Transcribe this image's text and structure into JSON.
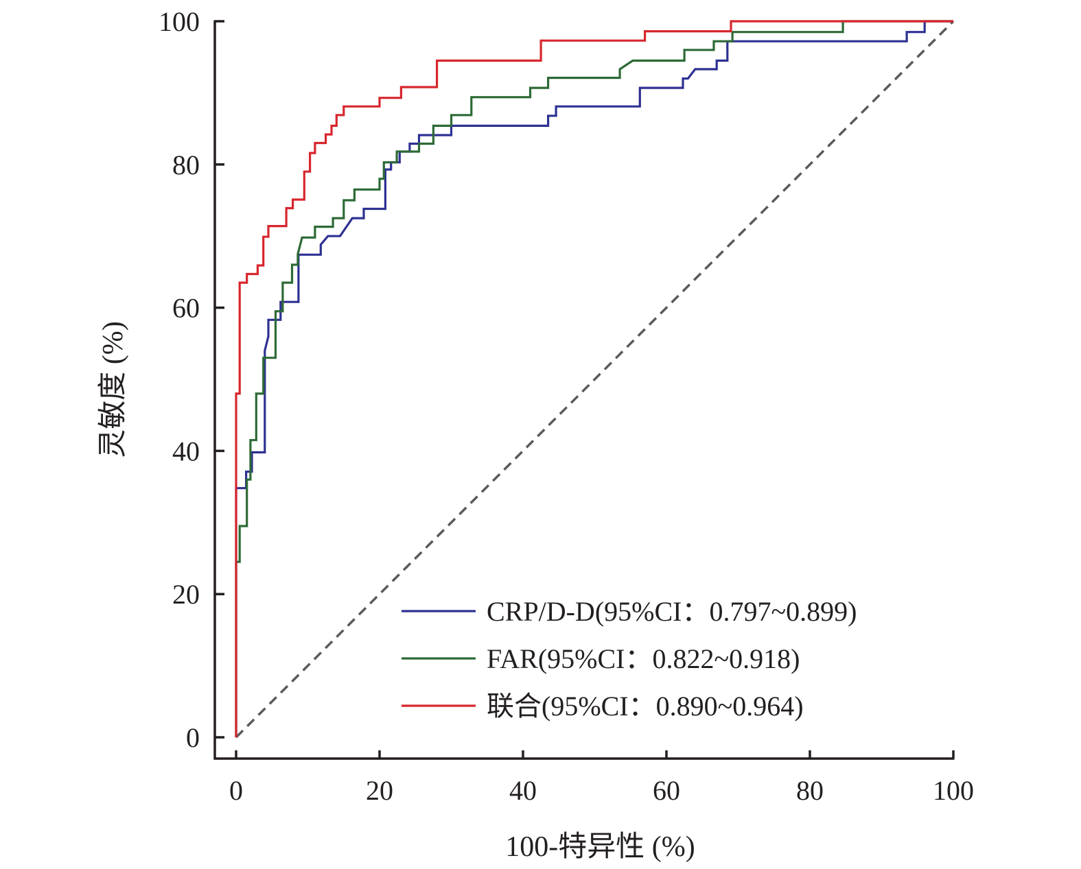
{
  "chart_data": {
    "type": "line",
    "subtype": "roc-step",
    "title": "",
    "xlabel": "100-特异性 (%)",
    "ylabel": "灵敏度 (%)",
    "xlim": [
      0,
      100
    ],
    "ylim": [
      0,
      100
    ],
    "xticks": [
      0,
      20,
      40,
      60,
      80,
      100
    ],
    "yticks": [
      0,
      20,
      40,
      60,
      80,
      100
    ],
    "xtick_labels": [
      "0",
      "20",
      "40",
      "60",
      "80",
      "100"
    ],
    "ytick_labels": [
      "0",
      "20",
      "40",
      "60",
      "80",
      "100"
    ],
    "grid": false,
    "legend_position": "bottom-right",
    "reference_line": {
      "name": "chance-diagonal",
      "x": [
        0,
        100
      ],
      "y": [
        0,
        100
      ],
      "style": "dashed",
      "color": "#5a5a5a"
    },
    "series": [
      {
        "name": "CRP/D-D(95%CI：0.797~0.899)",
        "color": "#2e3192",
        "x": [
          0,
          0,
          1.4,
          1.4,
          2.2,
          2.2,
          4,
          4,
          4.5,
          4.5,
          6.2,
          6.2,
          8.7,
          8.7,
          11.8,
          11.8,
          12.8,
          14.5,
          16.2,
          17.8,
          17.8,
          20.8,
          20.8,
          21.6,
          21.6,
          22.8,
          22.8,
          24.2,
          24.2,
          25.5,
          25.5,
          30,
          30,
          43.5,
          43.5,
          44.6,
          44.6,
          56.3,
          56.3,
          62.3,
          62.3,
          63,
          64,
          67,
          67,
          68.5,
          68.5,
          93.5,
          93.5,
          96,
          96,
          100
        ],
        "y": [
          0,
          34.8,
          34.8,
          37.1,
          37.1,
          39.8,
          39.8,
          54,
          56,
          58.3,
          58.3,
          60.8,
          60.8,
          67.4,
          67.4,
          68.8,
          70,
          70,
          72.5,
          72.5,
          73.8,
          73.8,
          79.3,
          79.3,
          80.3,
          80.3,
          81.8,
          81.8,
          82.9,
          82.9,
          84.1,
          84.1,
          85.4,
          85.4,
          86.8,
          86.8,
          88.1,
          88.1,
          90.7,
          90.7,
          92,
          92,
          93.3,
          93.3,
          94.5,
          94.5,
          97.2,
          97.2,
          98.5,
          98.5,
          100,
          100
        ]
      },
      {
        "name": "FAR(95%CI：0.822~0.918)",
        "color": "#2d6a36",
        "x": [
          0,
          0,
          0.5,
          0.5,
          1.5,
          1.5,
          2,
          2,
          2.8,
          2.8,
          3.8,
          3.8,
          5.5,
          5.5,
          6.5,
          6.5,
          7.8,
          7.8,
          8.6,
          8.6,
          9.2,
          11,
          11,
          13.5,
          13.5,
          15,
          15,
          16.5,
          16.5,
          20,
          20,
          20.6,
          20.6,
          22.4,
          22.4,
          25.5,
          25.5,
          27.5,
          27.5,
          30,
          30,
          32.8,
          32.8,
          41,
          41,
          43.5,
          43.5,
          53.5,
          53.5,
          55.3,
          62.5,
          62.5,
          66.6,
          66.6,
          69.2,
          69.2,
          84.6,
          84.6,
          100
        ],
        "y": [
          0,
          24.5,
          24.5,
          29.5,
          29.5,
          36,
          36,
          41.5,
          41.5,
          48,
          48,
          53,
          53,
          59.5,
          59.5,
          63.5,
          63.5,
          66,
          66,
          67.5,
          69.8,
          69.8,
          71.3,
          71.3,
          72.5,
          72.5,
          75,
          75,
          76.5,
          76.5,
          78,
          78,
          80.3,
          80.3,
          81.8,
          81.8,
          82.9,
          82.9,
          85.4,
          85.4,
          86.9,
          86.9,
          89.4,
          89.4,
          90.7,
          90.7,
          92.1,
          92.1,
          93.3,
          94.5,
          94.5,
          96,
          96,
          97.2,
          97.2,
          98.5,
          98.5,
          100,
          100
        ]
      },
      {
        "name": "联合(95%CI：0.890~0.964)",
        "color": "#d7262e",
        "x": [
          0,
          0,
          0.5,
          0.5,
          1.5,
          1.5,
          3,
          3,
          3.8,
          3.8,
          4.5,
          4.5,
          7,
          7,
          7.9,
          7.9,
          9.5,
          9.5,
          10.3,
          10.3,
          11,
          11,
          12.5,
          12.5,
          13.3,
          13.3,
          14,
          14,
          15,
          15,
          20,
          20,
          23,
          23,
          28,
          28,
          42.5,
          42.5,
          57,
          57,
          69,
          69,
          100
        ],
        "y": [
          0,
          48,
          48,
          63.5,
          63.5,
          64.7,
          64.7,
          65.9,
          65.9,
          69.9,
          69.9,
          71.4,
          71.4,
          73.9,
          73.9,
          75.1,
          75.1,
          79,
          79,
          81.6,
          81.6,
          83,
          83,
          84.2,
          84.2,
          85.4,
          85.4,
          86.9,
          86.9,
          88.1,
          88.1,
          89.3,
          89.3,
          90.8,
          90.8,
          94.5,
          94.5,
          97.3,
          97.3,
          98.6,
          98.6,
          100,
          100
        ]
      }
    ]
  }
}
